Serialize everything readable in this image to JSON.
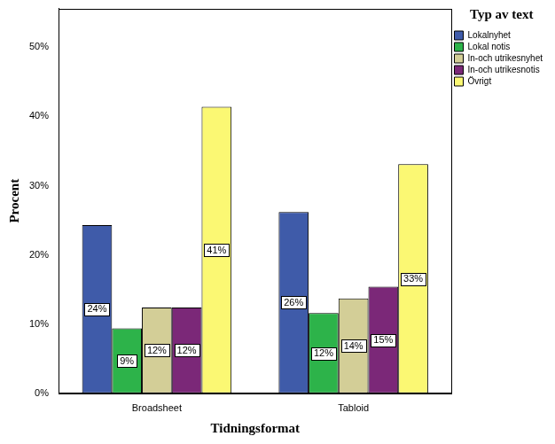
{
  "chart_data": {
    "type": "bar",
    "x_label": "Tidningsformat",
    "y_label": "Procent",
    "legend_title": "Typ av text",
    "categories": [
      "Broadsheet",
      "Tabloid"
    ],
    "series": [
      {
        "name": "Lokalnyhet",
        "color": "#3f5ba9",
        "values": [
          24.3,
          26.2
        ],
        "value_labels": [
          "24%",
          "26%"
        ]
      },
      {
        "name": "Lokal notis",
        "color": "#2db34a",
        "values": [
          9.4,
          11.6
        ],
        "value_labels": [
          "9%",
          "12%"
        ]
      },
      {
        "name": "In-och utrikesnyhet",
        "color": "#d3ce97",
        "values": [
          12.4,
          13.7
        ],
        "value_labels": [
          "12%",
          "14%"
        ]
      },
      {
        "name": "In-och utrikesnotis",
        "color": "#7b2878",
        "values": [
          12.4,
          15.4
        ],
        "value_labels": [
          "12%",
          "15%"
        ]
      },
      {
        "name": "Övrigt",
        "color": "#fbf873",
        "values": [
          41.4,
          33.1
        ],
        "value_labels": [
          "41%",
          "33%"
        ]
      }
    ],
    "ylim": [
      0,
      55.6
    ],
    "yticks": [
      {
        "value": 0,
        "label": "0%"
      },
      {
        "value": 10,
        "label": "10%"
      },
      {
        "value": 20,
        "label": "20%"
      },
      {
        "value": 30,
        "label": "30%"
      },
      {
        "value": 40,
        "label": "40%"
      },
      {
        "value": 50,
        "label": "50%"
      }
    ],
    "grid": false,
    "legend": "right",
    "data_labels": true
  }
}
